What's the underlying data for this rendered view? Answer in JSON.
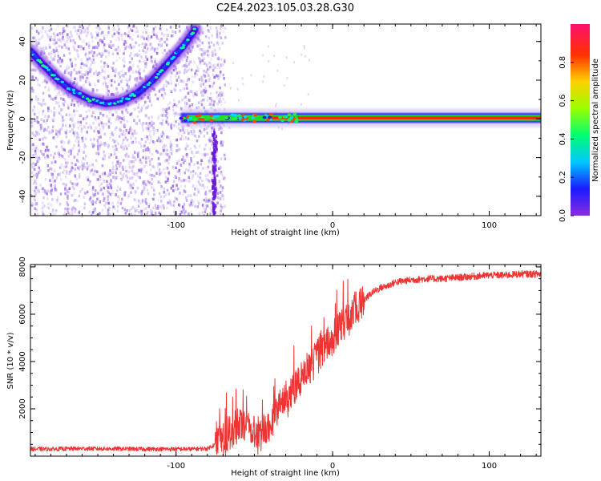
{
  "title": "C2E4.2023.105.03.28.G30",
  "colors": {
    "snr_line": "#ee3333",
    "arc_peak": "#00e0ff",
    "arc_body": "#3300dd",
    "band_center": "#ff2200",
    "band_mid": "#22dd22",
    "band_edge": "#2222ff"
  },
  "chart_data": [
    {
      "type": "heatmap",
      "name": "spectrogram",
      "xlabel": "Height of straight line (km)",
      "ylabel": "Frequency (Hz)",
      "xlim": [
        -193,
        133
      ],
      "ylim": [
        -50,
        49
      ],
      "xticks": [
        -100,
        0,
        100
      ],
      "xtick_labels": [
        "-100",
        "0",
        "100"
      ],
      "yticks": [
        -40,
        -20,
        0,
        20,
        40
      ],
      "ytick_labels": [
        "-40",
        "-20",
        "0",
        "20",
        "40"
      ],
      "arc_points": [
        {
          "x": -193,
          "y": 35
        },
        {
          "x": -185,
          "y": 28
        },
        {
          "x": -175,
          "y": 20
        },
        {
          "x": -165,
          "y": 14
        },
        {
          "x": -155,
          "y": 10
        },
        {
          "x": -145,
          "y": 8
        },
        {
          "x": -135,
          "y": 9
        },
        {
          "x": -125,
          "y": 13
        },
        {
          "x": -115,
          "y": 20
        },
        {
          "x": -105,
          "y": 29
        },
        {
          "x": -95,
          "y": 38
        },
        {
          "x": -88,
          "y": 46
        }
      ],
      "band": {
        "x_start": -97,
        "x_end": 133,
        "center": 0.5,
        "half_width": 2
      },
      "noise_x_range": [
        -193,
        -73
      ],
      "colorbar": {
        "label": "Normalized spectral amplitude",
        "range": [
          0,
          1
        ],
        "ticks": [
          0,
          0.2,
          0.4,
          0.6,
          0.8
        ],
        "tick_labels": [
          "0.0",
          "0.2",
          "0.4",
          "0.6",
          "0.8"
        ]
      }
    },
    {
      "type": "line",
      "name": "snr",
      "xlabel": "Height of straight line (km)",
      "ylabel": "SNR (10 * v/v)",
      "xlim": [
        -193,
        133
      ],
      "ylim": [
        0,
        8100
      ],
      "xticks": [
        -100,
        0,
        100
      ],
      "xtick_labels": [
        "-100",
        "0",
        "100"
      ],
      "yticks": [
        2000,
        4000,
        6000,
        8000
      ],
      "ytick_labels": [
        "2000",
        "4000",
        "6000",
        "8000"
      ],
      "series": [
        {
          "x": [
            -193,
            -180,
            -160,
            -140,
            -120,
            -100,
            -90,
            -80,
            -75,
            -70,
            -65,
            -60,
            -55,
            -50,
            -45,
            -40,
            -35,
            -30,
            -25,
            -20,
            -15,
            -10,
            -5,
            0,
            5,
            10,
            15,
            20,
            25,
            30,
            35,
            40,
            50,
            60,
            70,
            80,
            90,
            100,
            110,
            120,
            133
          ],
          "y": [
            300,
            300,
            320,
            310,
            300,
            300,
            300,
            320,
            500,
            700,
            1000,
            1300,
            1400,
            1100,
            900,
            1400,
            1900,
            2500,
            2900,
            3300,
            3700,
            4200,
            4600,
            5000,
            5500,
            5900,
            6300,
            6600,
            6900,
            7100,
            7200,
            7350,
            7450,
            7500,
            7500,
            7550,
            7600,
            7650,
            7650,
            7700,
            7700
          ]
        }
      ]
    }
  ]
}
